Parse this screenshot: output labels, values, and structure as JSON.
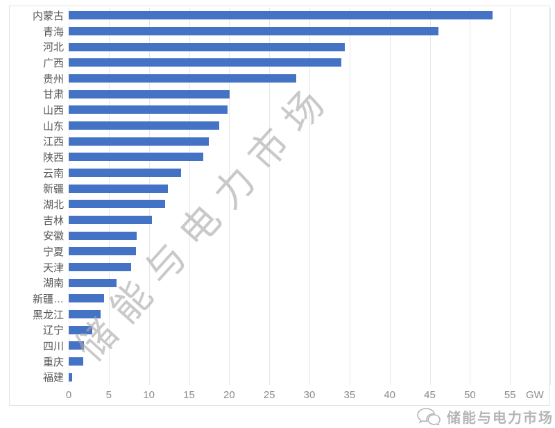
{
  "chart_data": {
    "type": "bar",
    "orientation": "horizontal",
    "title": "",
    "xlabel": "",
    "ylabel": "",
    "unit": "GW",
    "categories": [
      "内蒙古",
      "青海",
      "河北",
      "广西",
      "贵州",
      "甘肃",
      "山西",
      "山东",
      "江西",
      "陕西",
      "云南",
      "新疆",
      "湖北",
      "吉林",
      "安徽",
      "宁夏",
      "天津",
      "湖南",
      "新疆…",
      "黑龙江",
      "辽宁",
      "四川",
      "重庆",
      "福建"
    ],
    "values": [
      52.8,
      46.1,
      34.4,
      34.0,
      28.4,
      20.1,
      19.8,
      18.8,
      17.5,
      16.8,
      14.0,
      12.4,
      12.0,
      10.4,
      8.5,
      8.4,
      7.8,
      6.0,
      4.4,
      4.0,
      2.9,
      1.9,
      1.8,
      0.4
    ],
    "x_ticks": [
      0,
      5,
      10,
      15,
      20,
      25,
      30,
      35,
      40,
      45,
      50,
      55
    ],
    "xlim": [
      0,
      60
    ],
    "grid": true,
    "legend": "none",
    "bar_color": "#4472c4",
    "gridline_color": "#e7e7e7",
    "label_color": "#575757",
    "tick_color": "#8a8a8a"
  },
  "watermark": {
    "text": "储能与电力市场"
  },
  "footer": {
    "logo_text": "储能与电力市场",
    "icon": "chat-bubbles-icon"
  }
}
